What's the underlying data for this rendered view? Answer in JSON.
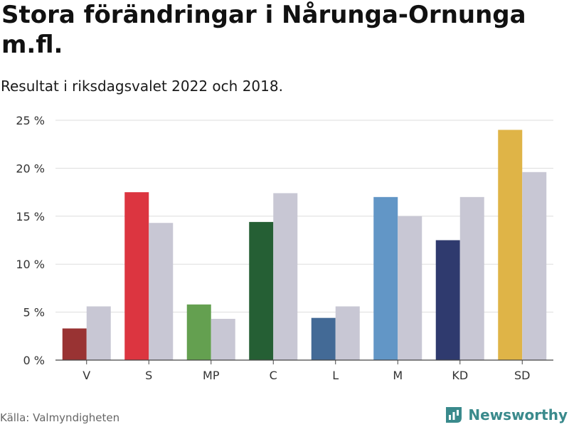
{
  "title": "Stora förändringar i Nårunga-Ornunga m.fl.",
  "subtitle": "Resultat i riksdagsvalet 2022 och 2018.",
  "source": "Källa: Valmyndigheten",
  "brand": {
    "name": "Newsworthy",
    "icon": "newsworthy-logo-icon",
    "color": "#3a8a8c"
  },
  "chart_data": {
    "type": "bar",
    "categories": [
      "V",
      "S",
      "MP",
      "C",
      "L",
      "M",
      "KD",
      "SD"
    ],
    "series": [
      {
        "values": [
          3.3,
          17.5,
          5.8,
          14.4,
          4.4,
          17.0,
          12.5,
          24.0
        ],
        "colors": [
          "#993333",
          "#dc3540",
          "#64a050",
          "#255f34",
          "#436a96",
          "#6296c6",
          "#2f3a6e",
          "#dfb447"
        ]
      },
      {
        "values": [
          5.6,
          14.3,
          4.3,
          17.4,
          5.6,
          15.0,
          17.0,
          19.6
        ],
        "color": "#c8c7d4"
      }
    ],
    "yticks": [
      0,
      5,
      10,
      15,
      20,
      25
    ],
    "ytick_labels": [
      "0 %",
      "5 %",
      "10 %",
      "15 %",
      "20 %",
      "25 %"
    ],
    "ylim": [
      0,
      25
    ],
    "grid": true,
    "grid_color": "#dddddd",
    "axis_color": "#444444"
  }
}
